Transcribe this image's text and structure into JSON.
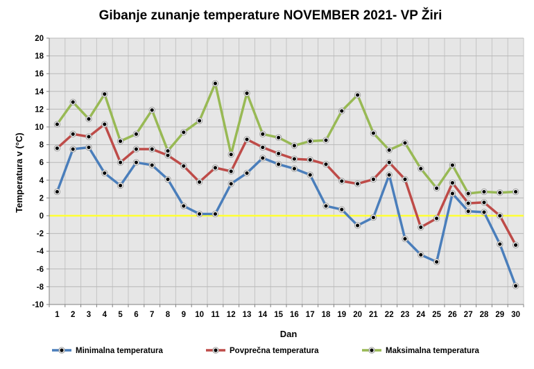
{
  "chart_data": {
    "type": "line",
    "title": "Gibanje zunanje temperature NOVEMBER 2021- VP Žiri",
    "xlabel": "Dan",
    "ylabel": "Temperatura v (°C)",
    "ylim": [
      -10,
      20
    ],
    "yticks": [
      -10,
      -8,
      -6,
      -4,
      -2,
      0,
      2,
      4,
      6,
      8,
      10,
      12,
      14,
      16,
      18,
      20
    ],
    "x": [
      1,
      2,
      3,
      4,
      5,
      6,
      7,
      8,
      9,
      10,
      11,
      12,
      13,
      14,
      15,
      16,
      17,
      18,
      19,
      20,
      21,
      22,
      23,
      24,
      25,
      26,
      27,
      28,
      29,
      30
    ],
    "grid": true,
    "reference_line": {
      "y": 0,
      "color": "#ffff33"
    },
    "legend_position": "bottom",
    "series": [
      {
        "name": "Minimalna temperatura",
        "color": "#4a7ebb",
        "values": [
          2.7,
          7.5,
          7.7,
          4.8,
          3.4,
          6.0,
          5.7,
          4.1,
          1.1,
          0.2,
          0.2,
          3.6,
          4.8,
          6.5,
          5.8,
          5.3,
          4.6,
          1.1,
          0.7,
          -1.1,
          -0.2,
          4.6,
          -2.6,
          -4.4,
          -5.2,
          2.5,
          0.5,
          0.4,
          -3.2,
          -7.9
        ]
      },
      {
        "name": "Povprečna temperatura",
        "color": "#be4b48",
        "values": [
          7.6,
          9.2,
          8.9,
          10.3,
          6.0,
          7.5,
          7.5,
          6.8,
          5.6,
          3.8,
          5.4,
          5.0,
          8.6,
          7.7,
          7.0,
          6.4,
          6.3,
          5.8,
          3.9,
          3.6,
          4.1,
          6.0,
          4.1,
          -1.3,
          -0.3,
          3.7,
          1.4,
          1.5,
          0.0,
          -3.3
        ]
      },
      {
        "name": "Maksimalna temperatura",
        "color": "#98b954",
        "values": [
          10.3,
          12.8,
          10.9,
          13.7,
          8.4,
          9.2,
          11.9,
          7.3,
          9.4,
          10.7,
          14.9,
          6.9,
          13.8,
          9.2,
          8.8,
          7.9,
          8.4,
          8.5,
          11.8,
          13.6,
          9.3,
          7.4,
          8.2,
          5.3,
          3.1,
          5.7,
          2.5,
          2.7,
          2.6,
          2.7
        ]
      }
    ]
  }
}
